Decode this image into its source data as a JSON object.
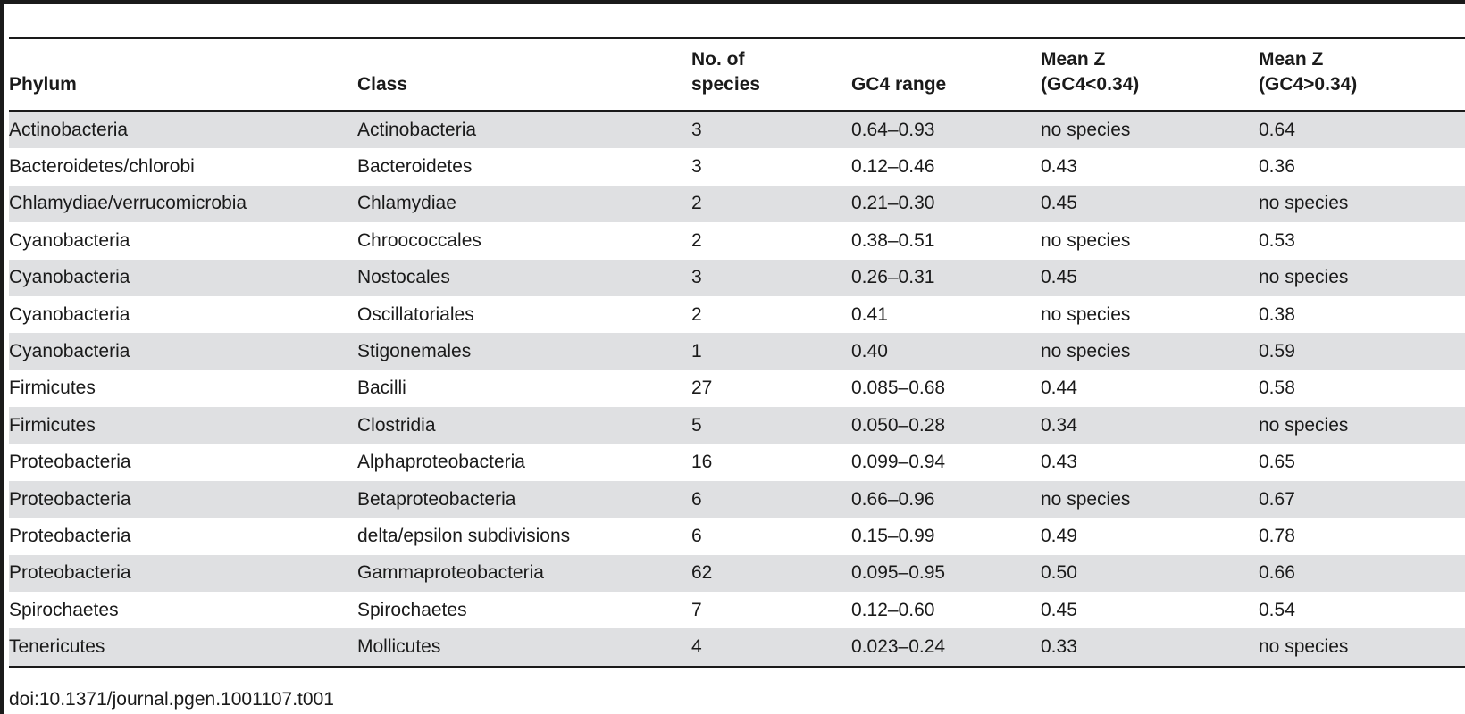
{
  "table": {
    "headers": [
      "Phylum",
      "Class",
      "No. of species",
      "GC4 range",
      "Mean Z (GC4<0.34)",
      "Mean Z (GC4>0.34)"
    ],
    "header_lines": [
      [
        "Phylum"
      ],
      [
        "Class"
      ],
      [
        "No. of",
        "species"
      ],
      [
        "GC4 range"
      ],
      [
        "Mean Z",
        "(GC4<0.34)"
      ],
      [
        "Mean Z",
        "(GC4>0.34)"
      ]
    ],
    "rows": [
      [
        "Actinobacteria",
        "Actinobacteria",
        "3",
        "0.64–0.93",
        "no species",
        "0.64"
      ],
      [
        "Bacteroidetes/chlorobi",
        "Bacteroidetes",
        "3",
        "0.12–0.46",
        "0.43",
        "0.36"
      ],
      [
        "Chlamydiae/verrucomicrobia",
        "Chlamydiae",
        "2",
        "0.21–0.30",
        "0.45",
        "no species"
      ],
      [
        "Cyanobacteria",
        "Chroococcales",
        "2",
        "0.38–0.51",
        "no species",
        "0.53"
      ],
      [
        "Cyanobacteria",
        "Nostocales",
        "3",
        "0.26–0.31",
        "0.45",
        "no species"
      ],
      [
        "Cyanobacteria",
        "Oscillatoriales",
        "2",
        "0.41",
        "no species",
        "0.38"
      ],
      [
        "Cyanobacteria",
        "Stigonemales",
        "1",
        "0.40",
        "no species",
        "0.59"
      ],
      [
        "Firmicutes",
        "Bacilli",
        "27",
        "0.085–0.68",
        "0.44",
        "0.58"
      ],
      [
        "Firmicutes",
        "Clostridia",
        "5",
        "0.050–0.28",
        "0.34",
        "no species"
      ],
      [
        "Proteobacteria",
        "Alphaproteobacteria",
        "16",
        "0.099–0.94",
        "0.43",
        "0.65"
      ],
      [
        "Proteobacteria",
        "Betaproteobacteria",
        "6",
        "0.66–0.96",
        "no species",
        "0.67"
      ],
      [
        "Proteobacteria",
        "delta/epsilon subdivisions",
        "6",
        "0.15–0.99",
        "0.49",
        "0.78"
      ],
      [
        "Proteobacteria",
        "Gammaproteobacteria",
        "62",
        "0.095–0.95",
        "0.50",
        "0.66"
      ],
      [
        "Spirochaetes",
        "Spirochaetes",
        "7",
        "0.12–0.60",
        "0.45",
        "0.54"
      ],
      [
        "Tenericutes",
        "Mollicutes",
        "4",
        "0.023–0.24",
        "0.33",
        "no species"
      ]
    ]
  },
  "doi": "doi:10.1371/journal.pgen.1001107.t001",
  "colors": {
    "stripe": "#dfe0e2",
    "rule": "#1a1a1a",
    "text": "#1a1a1a"
  }
}
